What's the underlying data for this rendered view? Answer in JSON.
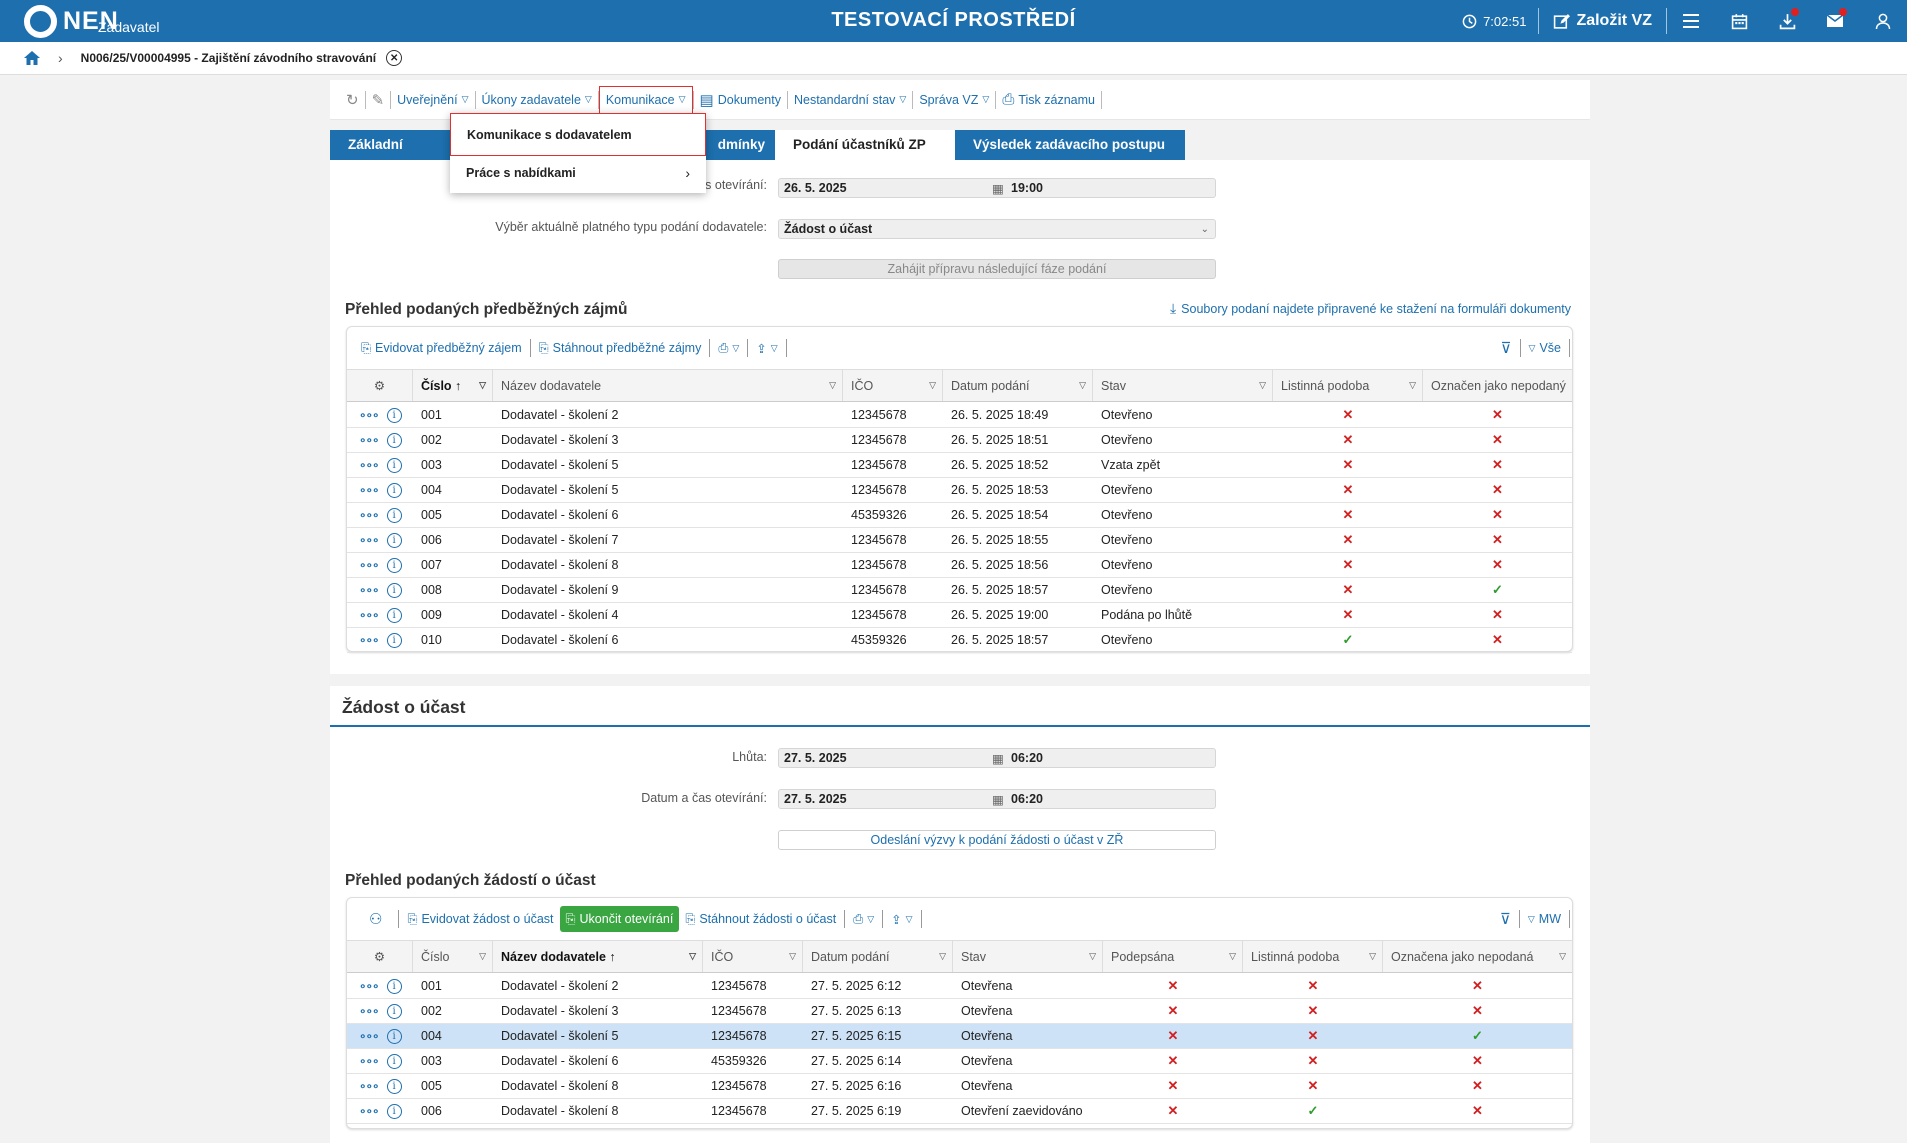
{
  "header": {
    "logo": "NEN",
    "logo_sub": "Zadavatel",
    "env_title": "TESTOVACÍ PROSTŘEDÍ",
    "time": "7:02:51",
    "create_label": "Založit VZ",
    "icons": [
      "clock-icon",
      "edit-icon",
      "menu-icon",
      "calendar-icon",
      "download-icon",
      "mail-icon",
      "user-icon"
    ]
  },
  "breadcrumb": {
    "title": "N006/25/V00004995 - Zajištění závodního stravování"
  },
  "actionbar": {
    "items": [
      "Uveřejnění",
      "Úkony zadavatele",
      "Komunikace",
      "Dokumenty",
      "Nestandardní stav",
      "Správa VZ",
      "Tisk záznamu"
    ]
  },
  "tabs": [
    "Základní údaje",
    "dmínky",
    "Podání účastníků ZP",
    "Výsledek zadávacího postupu"
  ],
  "dropdown": {
    "item1": "Komunikace s dodavatelem",
    "item2": "Práce s nabídkami"
  },
  "form1": {
    "open_label": "s otevírání:",
    "open_date": "26. 5. 2025",
    "open_time": "19:00",
    "type_label": "Výběr aktuálně platného typu podání dodavatele:",
    "type_value": "Žádost o účast",
    "prepare_btn": "Zahájit přípravu následující fáze podání"
  },
  "grid1": {
    "title": "Přehled podaných předběžných zájmů",
    "download_link": "Soubory podaní najdete připravené ke stažení na formuláři dokumenty",
    "tool_add": "Evidovat předběžný zájem",
    "tool_download": "Stáhnout předběžné zájmy",
    "filter_label": "Vše",
    "columns": [
      "Číslo",
      "Název dodavatele",
      "IČO",
      "Datum podání",
      "Stav",
      "Listinná podoba",
      "Označen jako nepodaný"
    ],
    "rows": [
      {
        "c": "001",
        "n": "Dodavatel - školení 2",
        "i": "12345678",
        "d": "26. 5. 2025 18:49",
        "s": "Otevřeno",
        "l": "x",
        "o": "x"
      },
      {
        "c": "002",
        "n": "Dodavatel - školení 3",
        "i": "12345678",
        "d": "26. 5. 2025 18:51",
        "s": "Otevřeno",
        "l": "x",
        "o": "x"
      },
      {
        "c": "003",
        "n": "Dodavatel - školení 5",
        "i": "12345678",
        "d": "26. 5. 2025 18:52",
        "s": "Vzata zpět",
        "l": "x",
        "o": "x"
      },
      {
        "c": "004",
        "n": "Dodavatel - školení 5",
        "i": "12345678",
        "d": "26. 5. 2025 18:53",
        "s": "Otevřeno",
        "l": "x",
        "o": "x"
      },
      {
        "c": "005",
        "n": "Dodavatel - školení 6",
        "i": "45359326",
        "d": "26. 5. 2025 18:54",
        "s": "Otevřeno",
        "l": "x",
        "o": "x"
      },
      {
        "c": "006",
        "n": "Dodavatel - školení 7",
        "i": "12345678",
        "d": "26. 5. 2025 18:55",
        "s": "Otevřeno",
        "l": "x",
        "o": "x"
      },
      {
        "c": "007",
        "n": "Dodavatel - školení 8",
        "i": "12345678",
        "d": "26. 5. 2025 18:56",
        "s": "Otevřeno",
        "l": "x",
        "o": "x"
      },
      {
        "c": "008",
        "n": "Dodavatel - školení 9",
        "i": "12345678",
        "d": "26. 5. 2025 18:57",
        "s": "Otevřeno",
        "l": "x",
        "o": "ok"
      },
      {
        "c": "009",
        "n": "Dodavatel - školení 4",
        "i": "12345678",
        "d": "26. 5. 2025 19:00",
        "s": "Podána po lhůtě",
        "l": "x",
        "o": "x"
      },
      {
        "c": "010",
        "n": "Dodavatel - školení 6",
        "i": "45359326",
        "d": "26. 5. 2025 18:57",
        "s": "Otevřeno",
        "l": "ok",
        "o": "x"
      }
    ]
  },
  "section2": {
    "title": "Žádost o účast",
    "deadline_label": "Lhůta:",
    "deadline_date": "27. 5. 2025",
    "deadline_time": "06:20",
    "open_label": "Datum a čas otevírání:",
    "open_date": "27. 5. 2025",
    "open_time": "06:20",
    "send_btn": "Odeslání výzvy k podání žádosti o účast v ZŘ"
  },
  "grid2": {
    "title": "Přehled podaných žádostí o účast",
    "tool_add": "Evidovat žádost o účast",
    "tool_end": "Ukončit otevírání",
    "tool_download": "Stáhnout žádosti o účast",
    "filter_label": "MW",
    "columns": [
      "Číslo",
      "Název dodavatele",
      "IČO",
      "Datum podání",
      "Stav",
      "Podepsána",
      "Listinná podoba",
      "Označena jako nepodaná"
    ],
    "rows": [
      {
        "c": "001",
        "n": "Dodavatel - školení 2",
        "i": "12345678",
        "d": "27. 5. 2025 6:12",
        "s": "Otevřena",
        "p": "x",
        "l": "x",
        "o": "x"
      },
      {
        "c": "002",
        "n": "Dodavatel - školení 3",
        "i": "12345678",
        "d": "27. 5. 2025 6:13",
        "s": "Otevřena",
        "p": "x",
        "l": "x",
        "o": "x"
      },
      {
        "c": "004",
        "n": "Dodavatel - školení 5",
        "i": "12345678",
        "d": "27. 5. 2025 6:15",
        "s": "Otevřena",
        "p": "x",
        "l": "x",
        "o": "ok"
      },
      {
        "c": "003",
        "n": "Dodavatel - školení 6",
        "i": "45359326",
        "d": "27. 5. 2025 6:14",
        "s": "Otevřena",
        "p": "x",
        "l": "x",
        "o": "x"
      },
      {
        "c": "005",
        "n": "Dodavatel - školení 8",
        "i": "12345678",
        "d": "27. 5. 2025 6:16",
        "s": "Otevřena",
        "p": "x",
        "l": "x",
        "o": "x"
      },
      {
        "c": "006",
        "n": "Dodavatel - školení 8",
        "i": "12345678",
        "d": "27. 5. 2025 6:19",
        "s": "Otevření zaevidováno",
        "p": "x",
        "l": "ok",
        "o": "x"
      }
    ],
    "selected_row": 2
  }
}
